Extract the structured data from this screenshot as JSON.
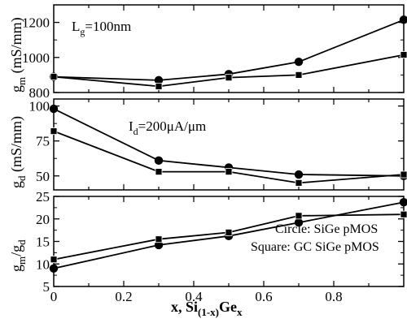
{
  "chart_data": {
    "type": "line",
    "x": [
      0,
      0.3,
      0.5,
      0.7,
      1.0
    ],
    "xlim": [
      0,
      1.0
    ],
    "xticks": [
      "0",
      "0.2",
      "0.4",
      "0.6",
      "0.8"
    ],
    "xlabel": {
      "main": "x, Si",
      "sub1": "(1-x)",
      "mid": "Ge",
      "sub2": "x"
    },
    "legend_text": {
      "circle": "Circle: SiGe pMOS",
      "square": "Square: GC SiGe pMOS"
    },
    "panels": [
      {
        "id": "gm",
        "ylabel": {
          "base": "g",
          "sub": "m",
          "unit": " (mS/mm)"
        },
        "ylim": [
          800,
          1300
        ],
        "yticks": [
          "800",
          "1000",
          "1200"
        ],
        "annotation": {
          "base": "L",
          "sub": "g",
          "rest": "=100nm"
        },
        "series": [
          {
            "marker": "circle",
            "values": [
              890,
              870,
              905,
              975,
              1215
            ]
          },
          {
            "marker": "square",
            "values": [
              890,
              835,
              885,
              900,
              1015
            ]
          }
        ]
      },
      {
        "id": "gd",
        "ylabel": {
          "base": "g",
          "sub": "d",
          "unit": " (mS/mm)"
        },
        "ylim": [
          40,
          105
        ],
        "yticks": [
          "50",
          "75",
          "100"
        ],
        "annotation": {
          "base": "I",
          "sub": "d",
          "rest": "=200μA/μm"
        },
        "series": [
          {
            "marker": "circle",
            "values": [
              98,
              61,
              56,
              51,
              50
            ]
          },
          {
            "marker": "square",
            "values": [
              82,
              53,
              53,
              45,
              51
            ]
          }
        ]
      },
      {
        "id": "ratio",
        "ylabel": {
          "base": "g",
          "sub": "m",
          "mid": "/g",
          "sub2": "d"
        },
        "ylim": [
          5,
          25
        ],
        "yticks": [
          "5",
          "10",
          "15",
          "20",
          "25"
        ],
        "series": [
          {
            "marker": "circle",
            "values": [
              9,
              14.2,
              16.2,
              19.2,
              23.7
            ]
          },
          {
            "marker": "square",
            "values": [
              11,
              15.5,
              17,
              20.7,
              21
            ]
          }
        ]
      }
    ]
  }
}
